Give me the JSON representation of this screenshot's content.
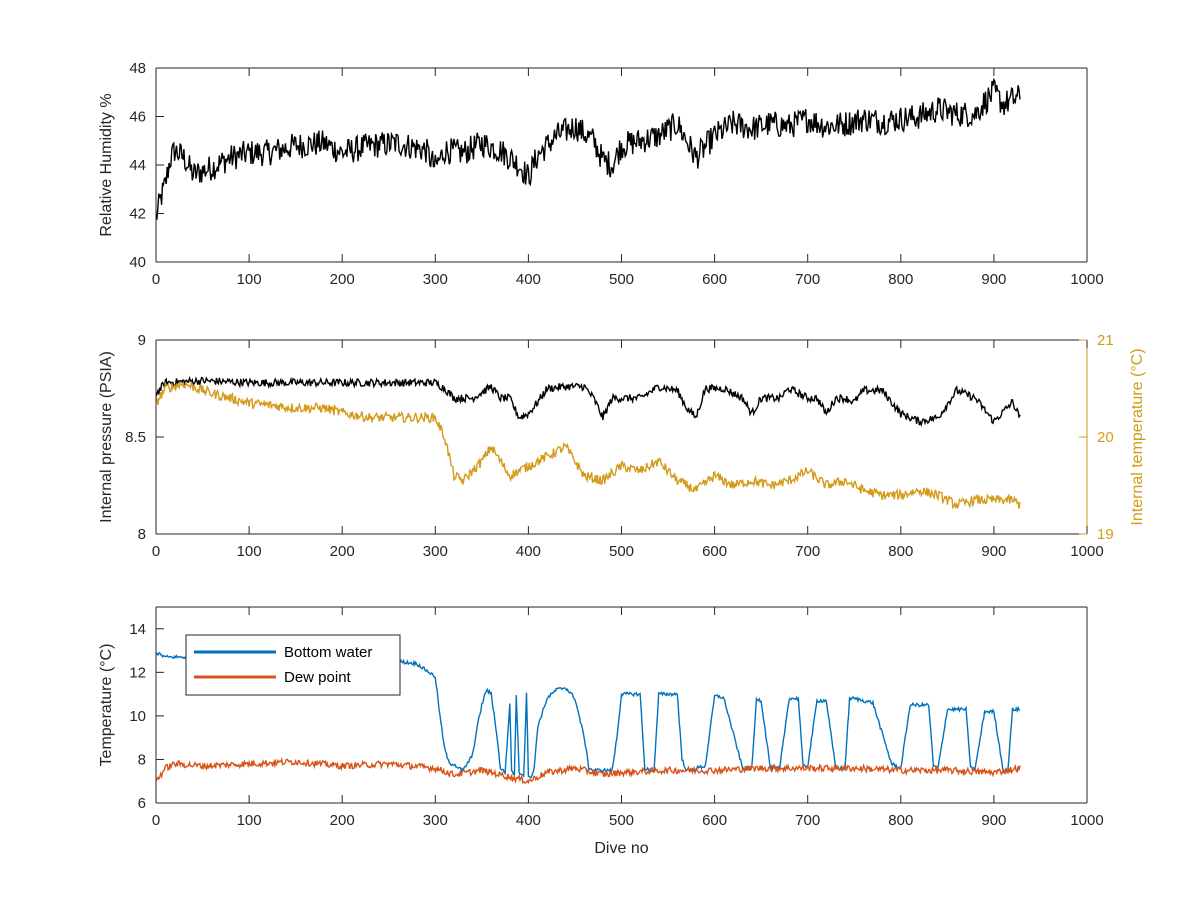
{
  "colors": {
    "axis": "#262626",
    "humidity": "#000000",
    "pressure": "#000000",
    "internal_temperature": "#D49A1A",
    "bottom_water": "#0072BD",
    "dew_point": "#D95319"
  },
  "chart_data": [
    {
      "type": "line",
      "title": "",
      "xlabel": "",
      "ylabel": "Relative Humidity %",
      "xlim": [
        0,
        1000
      ],
      "ylim": [
        40,
        48
      ],
      "xticks": [
        "0",
        "100",
        "200",
        "300",
        "400",
        "500",
        "600",
        "700",
        "800",
        "900",
        "1000"
      ],
      "yticks": [
        "40",
        "42",
        "44",
        "46",
        "48"
      ],
      "legend": null,
      "series": [
        {
          "color": "#000000",
          "noise": 0.55,
          "x": [
            0,
            5,
            10,
            15,
            20,
            30,
            40,
            60,
            80,
            100,
            120,
            150,
            180,
            200,
            230,
            260,
            290,
            300,
            310,
            330,
            350,
            370,
            390,
            400,
            410,
            430,
            450,
            470,
            480,
            490,
            500,
            520,
            540,
            560,
            570,
            580,
            600,
            620,
            640,
            660,
            680,
            700,
            720,
            740,
            760,
            780,
            800,
            820,
            840,
            860,
            880,
            890,
            900,
            910,
            920,
            928
          ],
          "y": [
            41.8,
            42.6,
            43.2,
            44.2,
            44.6,
            44.3,
            43.6,
            43.9,
            44.3,
            44.5,
            44.5,
            44.8,
            44.9,
            44.5,
            44.8,
            44.9,
            44.6,
            43.9,
            44.6,
            44.5,
            44.9,
            44.6,
            44.0,
            43.5,
            44.4,
            45.2,
            45.6,
            45.0,
            44.2,
            44.0,
            44.8,
            45.0,
            45.2,
            45.7,
            45.0,
            44.3,
            45.2,
            45.7,
            45.5,
            45.7,
            45.6,
            45.9,
            45.6,
            45.7,
            45.9,
            45.8,
            45.9,
            46.0,
            46.3,
            46.1,
            46.1,
            46.6,
            47.0,
            46.5,
            46.7,
            46.8
          ]
        }
      ]
    },
    {
      "type": "line",
      "title": "",
      "xlabel": "",
      "ylabel": "Internal pressure (PSIA)",
      "y2label": "Internal temperature (°C)",
      "xlim": [
        0,
        1000
      ],
      "ylim": [
        8,
        9
      ],
      "y2lim": [
        19,
        21
      ],
      "xticks": [
        "0",
        "100",
        "200",
        "300",
        "400",
        "500",
        "600",
        "700",
        "800",
        "900",
        "1000"
      ],
      "yticks": [
        "8",
        "8.5",
        "9"
      ],
      "y2ticks": [
        "19",
        "20",
        "21"
      ],
      "legend": null,
      "series": [
        {
          "color": "#000000",
          "axis": "left",
          "noise": 0.02,
          "x": [
            0,
            5,
            10,
            50,
            100,
            150,
            200,
            250,
            290,
            300,
            310,
            320,
            340,
            360,
            370,
            380,
            390,
            400,
            410,
            420,
            440,
            460,
            470,
            480,
            490,
            500,
            520,
            540,
            560,
            570,
            580,
            590,
            610,
            630,
            640,
            650,
            670,
            680,
            700,
            710,
            720,
            730,
            740,
            750,
            760,
            780,
            800,
            820,
            840,
            860,
            880,
            900,
            920,
            928
          ],
          "y": [
            8.72,
            8.75,
            8.78,
            8.79,
            8.78,
            8.78,
            8.78,
            8.78,
            8.78,
            8.78,
            8.75,
            8.7,
            8.7,
            8.76,
            8.7,
            8.7,
            8.6,
            8.62,
            8.68,
            8.75,
            8.76,
            8.76,
            8.7,
            8.6,
            8.7,
            8.7,
            8.7,
            8.76,
            8.74,
            8.65,
            8.6,
            8.75,
            8.75,
            8.7,
            8.62,
            8.7,
            8.7,
            8.75,
            8.7,
            8.7,
            8.62,
            8.7,
            8.7,
            8.68,
            8.74,
            8.74,
            8.62,
            8.58,
            8.6,
            8.74,
            8.7,
            8.58,
            8.68,
            8.6
          ]
        },
        {
          "color": "#D49A1A",
          "axis": "right",
          "noise": 0.05,
          "x": [
            0,
            10,
            30,
            60,
            100,
            150,
            180,
            200,
            230,
            270,
            300,
            310,
            320,
            330,
            350,
            360,
            380,
            400,
            420,
            440,
            460,
            480,
            500,
            520,
            540,
            560,
            580,
            600,
            620,
            640,
            660,
            680,
            700,
            720,
            740,
            760,
            780,
            800,
            820,
            840,
            860,
            880,
            900,
            920,
            928
          ],
          "y": [
            20.35,
            20.5,
            20.55,
            20.45,
            20.35,
            20.3,
            20.3,
            20.25,
            20.2,
            20.2,
            20.2,
            20.0,
            19.6,
            19.55,
            19.75,
            19.9,
            19.6,
            19.7,
            19.8,
            19.9,
            19.6,
            19.55,
            19.7,
            19.65,
            19.75,
            19.55,
            19.45,
            19.6,
            19.5,
            19.55,
            19.5,
            19.55,
            19.65,
            19.5,
            19.55,
            19.45,
            19.4,
            19.4,
            19.45,
            19.4,
            19.3,
            19.35,
            19.35,
            19.35,
            19.3
          ]
        }
      ]
    },
    {
      "type": "line",
      "title": "",
      "xlabel": "Dive no",
      "ylabel": "Temperature (°C)",
      "xlim": [
        0,
        1000
      ],
      "ylim": [
        6,
        15
      ],
      "xticks": [
        "0",
        "100",
        "200",
        "300",
        "400",
        "500",
        "600",
        "700",
        "800",
        "900",
        "1000"
      ],
      "yticks": [
        "6",
        "8",
        "10",
        "12",
        "14"
      ],
      "legend": "top-left",
      "series": [
        {
          "name": "Bottom water",
          "color": "#0072BD",
          "noise": 0.08,
          "x": [
            0,
            10,
            15,
            40,
            80,
            120,
            160,
            200,
            240,
            280,
            300,
            305,
            310,
            315,
            320,
            325,
            330,
            340,
            345,
            350,
            355,
            360,
            365,
            370,
            375,
            380,
            382,
            385,
            387,
            390,
            395,
            398,
            400,
            403,
            406,
            410,
            420,
            430,
            440,
            450,
            460,
            465,
            470,
            480,
            490,
            495,
            500,
            520,
            525,
            530,
            535,
            540,
            545,
            560,
            565,
            570,
            575,
            580,
            590,
            600,
            605,
            610,
            630,
            640,
            645,
            650,
            660,
            670,
            680,
            690,
            695,
            700,
            710,
            720,
            730,
            740,
            745,
            750,
            770,
            790,
            800,
            810,
            830,
            835,
            840,
            850,
            860,
            870,
            875,
            880,
            890,
            900,
            910,
            915,
            920,
            928
          ],
          "y": [
            12.9,
            12.7,
            12.7,
            12.7,
            12.8,
            12.8,
            12.8,
            12.7,
            12.6,
            12.4,
            11.8,
            10.0,
            8.5,
            7.8,
            7.8,
            7.6,
            7.5,
            8.2,
            9.5,
            10.5,
            11.2,
            11.0,
            9.5,
            7.6,
            7.4,
            10.5,
            7.5,
            7.3,
            11.0,
            7.4,
            7.3,
            11.0,
            7.3,
            7.2,
            7.5,
            9.5,
            10.8,
            11.2,
            11.3,
            10.8,
            9.0,
            7.6,
            7.5,
            7.5,
            7.5,
            9.0,
            11.0,
            11.0,
            7.6,
            7.5,
            7.5,
            11.0,
            11.0,
            11.0,
            8.0,
            7.5,
            7.5,
            7.6,
            7.7,
            10.9,
            10.9,
            10.8,
            7.6,
            7.6,
            10.8,
            10.7,
            7.6,
            7.6,
            10.8,
            10.8,
            7.7,
            7.7,
            10.7,
            10.7,
            7.6,
            7.6,
            10.8,
            10.8,
            10.6,
            7.8,
            7.6,
            10.5,
            10.5,
            7.7,
            7.6,
            10.3,
            10.3,
            10.3,
            7.6,
            7.6,
            10.2,
            10.2,
            7.5,
            7.5,
            10.3,
            10.3
          ]
        },
        {
          "name": "Dew point",
          "color": "#D95319",
          "noise": 0.15,
          "x": [
            0,
            10,
            20,
            50,
            100,
            150,
            200,
            250,
            300,
            320,
            350,
            380,
            400,
            420,
            450,
            480,
            500,
            550,
            600,
            650,
            700,
            750,
            800,
            850,
            900,
            928
          ],
          "y": [
            7.0,
            7.6,
            7.8,
            7.7,
            7.8,
            7.9,
            7.7,
            7.8,
            7.6,
            7.3,
            7.5,
            7.2,
            7.0,
            7.4,
            7.6,
            7.3,
            7.4,
            7.5,
            7.5,
            7.6,
            7.6,
            7.6,
            7.5,
            7.5,
            7.4,
            7.6
          ]
        }
      ]
    }
  ]
}
